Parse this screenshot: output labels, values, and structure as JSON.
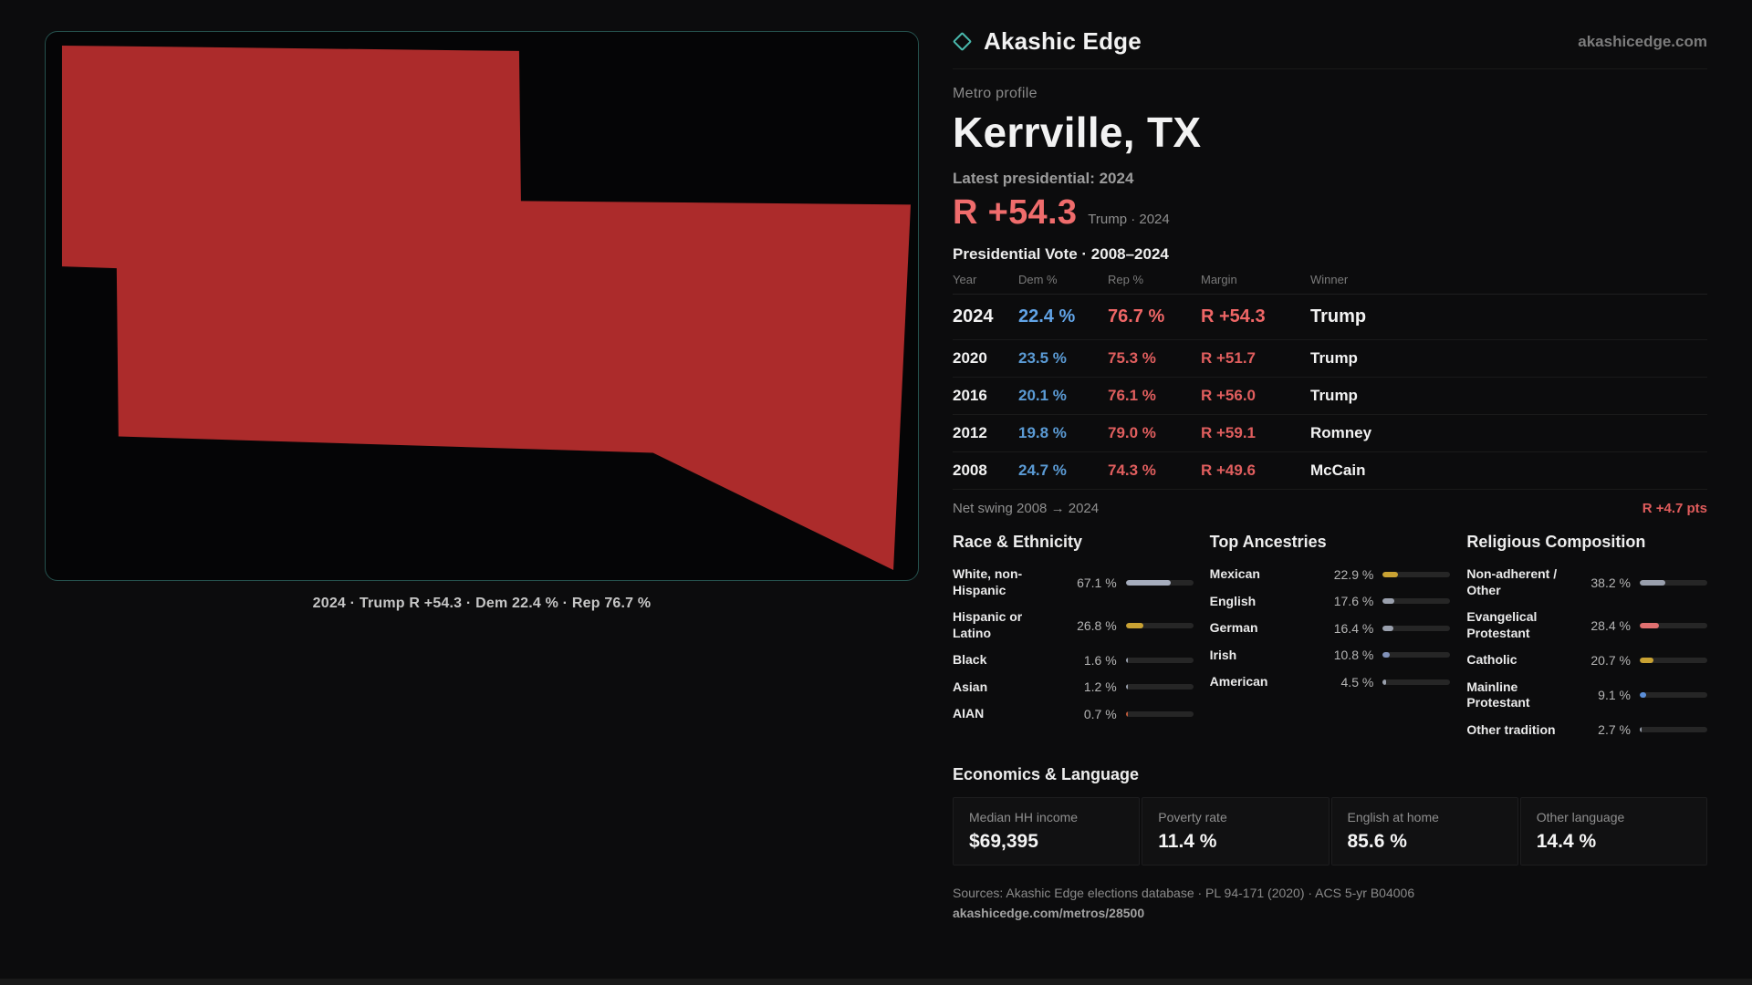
{
  "brand": {
    "name": "Akashic Edge",
    "site": "akashicedge.com",
    "accent_teal": "#49b8ac"
  },
  "map": {
    "caption": "2024 · Trump R +54.3 · Dem 22.4 % · Rep 76.7 %",
    "region_color": "#ac2b2b"
  },
  "profile": {
    "eyebrow": "Metro profile",
    "title": "Kerrville, TX",
    "latest_line": "Latest presidential: 2024",
    "headline": {
      "margin": "R +54.3",
      "note": "Trump · 2024"
    }
  },
  "vote_table": {
    "title": "Presidential Vote · 2008–2024",
    "columns": [
      "Year",
      "Dem %",
      "Rep %",
      "Margin",
      "Winner"
    ],
    "rows": [
      {
        "year": "2024",
        "dem": "22.4 %",
        "rep": "76.7 %",
        "margin": "R +54.3",
        "winner": "Trump"
      },
      {
        "year": "2020",
        "dem": "23.5 %",
        "rep": "75.3 %",
        "margin": "R +51.7",
        "winner": "Trump"
      },
      {
        "year": "2016",
        "dem": "20.1 %",
        "rep": "76.1 %",
        "margin": "R +56.0",
        "winner": "Trump"
      },
      {
        "year": "2012",
        "dem": "19.8 %",
        "rep": "79.0 %",
        "margin": "R +59.1",
        "winner": "Romney"
      },
      {
        "year": "2008",
        "dem": "24.7 %",
        "rep": "74.3 %",
        "margin": "R +49.6",
        "winner": "McCain"
      }
    ],
    "net_swing": {
      "label": "Net swing 2008 → 2024",
      "value": "R +4.7 pts"
    }
  },
  "demographics": [
    {
      "title": "Race & Ethnicity",
      "rows": [
        {
          "label": "White, non-Hispanic",
          "value": "67.1 %",
          "pct": 67.1,
          "color": "#a6adbd"
        },
        {
          "label": "Hispanic or Latino",
          "value": "26.8 %",
          "pct": 26.8,
          "color": "#c9a233"
        },
        {
          "label": "Black",
          "value": "1.6 %",
          "pct": 1.6,
          "color": "#9aa0ad"
        },
        {
          "label": "Asian",
          "value": "1.2 %",
          "pct": 1.2,
          "color": "#9aa0ad"
        },
        {
          "label": "AIAN",
          "value": "0.7 %",
          "pct": 0.7,
          "color": "#c05a3a"
        }
      ]
    },
    {
      "title": "Top Ancestries",
      "rows": [
        {
          "label": "Mexican",
          "value": "22.9 %",
          "pct": 22.9,
          "color": "#c9a233"
        },
        {
          "label": "English",
          "value": "17.6 %",
          "pct": 17.6,
          "color": "#9aa0ad"
        },
        {
          "label": "German",
          "value": "16.4 %",
          "pct": 16.4,
          "color": "#9aa0ad"
        },
        {
          "label": "Irish",
          "value": "10.8 %",
          "pct": 10.8,
          "color": "#8091b8"
        },
        {
          "label": "American",
          "value": "4.5 %",
          "pct": 4.5,
          "color": "#9aa0ad"
        }
      ]
    },
    {
      "title": "Religious Composition",
      "rows": [
        {
          "label": "Non-adherent / Other",
          "value": "38.2 %",
          "pct": 38.2,
          "color": "#9aa0ad"
        },
        {
          "label": "Evangelical Protestant",
          "value": "28.4 %",
          "pct": 28.4,
          "color": "#e07070"
        },
        {
          "label": "Catholic",
          "value": "20.7 %",
          "pct": 20.7,
          "color": "#c9a233"
        },
        {
          "label": "Mainline Protestant",
          "value": "9.1 %",
          "pct": 9.1,
          "color": "#5b8fd9"
        },
        {
          "label": "Other tradition",
          "value": "2.7 %",
          "pct": 2.7,
          "color": "#9aa0ad"
        }
      ]
    }
  ],
  "economics": {
    "title": "Economics & Language",
    "stats": [
      {
        "label": "Median HH income",
        "value": "$69,395"
      },
      {
        "label": "Poverty rate",
        "value": "11.4 %"
      },
      {
        "label": "English at home",
        "value": "85.6 %"
      },
      {
        "label": "Other language",
        "value": "14.4 %"
      }
    ]
  },
  "footer": {
    "sources": "Sources: Akashic Edge elections database · PL 94-171 (2020) · ACS 5-yr B04006",
    "permalink": "akashicedge.com/metros/28500"
  },
  "chart_data": [
    {
      "type": "table",
      "title": "Presidential Vote · 2008–2024",
      "columns": [
        "Year",
        "Dem %",
        "Rep %",
        "Margin",
        "Winner"
      ],
      "rows": [
        [
          "2024",
          22.4,
          76.7,
          "R +54.3",
          "Trump"
        ],
        [
          "2020",
          23.5,
          75.3,
          "R +51.7",
          "Trump"
        ],
        [
          "2016",
          20.1,
          76.1,
          "R +56.0",
          "Trump"
        ],
        [
          "2012",
          19.8,
          79.0,
          "R +59.1",
          "Romney"
        ],
        [
          "2008",
          24.7,
          74.3,
          "R +49.6",
          "McCain"
        ]
      ],
      "net_swing_2008_2024": "R +4.7 pts"
    },
    {
      "type": "bar",
      "title": "Race & Ethnicity",
      "categories": [
        "White, non-Hispanic",
        "Hispanic or Latino",
        "Black",
        "Asian",
        "AIAN"
      ],
      "values": [
        67.1,
        26.8,
        1.6,
        1.2,
        0.7
      ],
      "unit": "%",
      "xlim": [
        0,
        100
      ],
      "orientation": "horizontal"
    },
    {
      "type": "bar",
      "title": "Top Ancestries",
      "categories": [
        "Mexican",
        "English",
        "German",
        "Irish",
        "American"
      ],
      "values": [
        22.9,
        17.6,
        16.4,
        10.8,
        4.5
      ],
      "unit": "%",
      "xlim": [
        0,
        100
      ],
      "orientation": "horizontal"
    },
    {
      "type": "bar",
      "title": "Religious Composition",
      "categories": [
        "Non-adherent / Other",
        "Evangelical Protestant",
        "Catholic",
        "Mainline Protestant",
        "Other tradition"
      ],
      "values": [
        38.2,
        28.4,
        20.7,
        9.1,
        2.7
      ],
      "unit": "%",
      "xlim": [
        0,
        100
      ],
      "orientation": "horizontal"
    },
    {
      "type": "table",
      "title": "Economics & Language",
      "columns": [
        "Median HH income",
        "Poverty rate",
        "English at home",
        "Other language"
      ],
      "rows": [
        [
          "$69,395",
          "11.4 %",
          "85.6 %",
          "14.4 %"
        ]
      ]
    }
  ]
}
